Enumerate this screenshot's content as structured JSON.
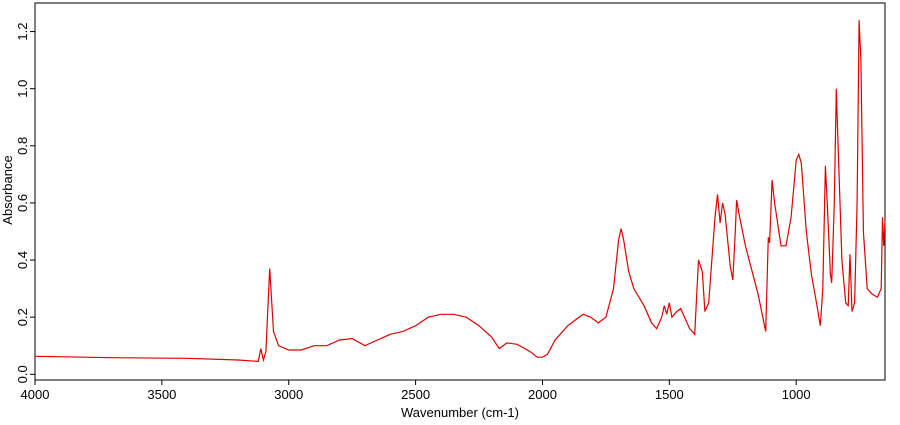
{
  "chart_data": {
    "type": "line",
    "xlabel": "Wavenumber (cm-1)",
    "ylabel": "Absorbance",
    "xlim": [
      4000,
      650
    ],
    "ylim": [
      -0.02,
      1.3
    ],
    "xticks": [
      4000,
      3500,
      3000,
      2500,
      2000,
      1500,
      1000
    ],
    "yticks": [
      {
        "value": 0,
        "label": "0.0"
      },
      0.2,
      0.4,
      0.6,
      0.8,
      {
        "value": 1,
        "label": "1.0"
      },
      1.2
    ],
    "series": [
      {
        "color": "#e00000",
        "x": [
          4000,
          3700,
          3400,
          3200,
          3120,
          3110,
          3100,
          3090,
          3075,
          3060,
          3040,
          3000,
          2950,
          2900,
          2850,
          2800,
          2750,
          2700,
          2650,
          2600,
          2550,
          2500,
          2450,
          2400,
          2350,
          2300,
          2250,
          2200,
          2170,
          2140,
          2100,
          2050,
          2020,
          2000,
          1980,
          1950,
          1900,
          1870,
          1840,
          1810,
          1780,
          1750,
          1720,
          1700,
          1690,
          1680,
          1660,
          1640,
          1600,
          1570,
          1550,
          1530,
          1520,
          1510,
          1500,
          1490,
          1470,
          1455,
          1440,
          1420,
          1400,
          1385,
          1370,
          1360,
          1345,
          1320,
          1310,
          1300,
          1290,
          1280,
          1260,
          1250,
          1240,
          1235,
          1225,
          1200,
          1150,
          1120,
          1110,
          1105,
          1095,
          1085,
          1060,
          1040,
          1020,
          1000,
          990,
          980,
          960,
          940,
          920,
          905,
          895,
          885,
          875,
          865,
          860,
          850,
          842,
          835,
          820,
          805,
          795,
          788,
          780,
          770,
          760,
          752,
          745,
          735,
          720,
          700,
          680,
          665,
          660,
          655,
          650
        ],
        "values": [
          0.063,
          0.058,
          0.056,
          0.05,
          0.045,
          0.09,
          0.05,
          0.08,
          0.37,
          0.15,
          0.1,
          0.085,
          0.085,
          0.1,
          0.1,
          0.12,
          0.125,
          0.1,
          0.12,
          0.14,
          0.15,
          0.17,
          0.2,
          0.21,
          0.21,
          0.2,
          0.17,
          0.13,
          0.09,
          0.11,
          0.105,
          0.08,
          0.06,
          0.06,
          0.07,
          0.12,
          0.17,
          0.19,
          0.21,
          0.2,
          0.18,
          0.2,
          0.3,
          0.47,
          0.51,
          0.47,
          0.36,
          0.3,
          0.24,
          0.18,
          0.16,
          0.2,
          0.24,
          0.21,
          0.25,
          0.2,
          0.22,
          0.23,
          0.2,
          0.16,
          0.14,
          0.4,
          0.36,
          0.22,
          0.25,
          0.55,
          0.63,
          0.53,
          0.6,
          0.56,
          0.38,
          0.33,
          0.5,
          0.61,
          0.56,
          0.45,
          0.28,
          0.15,
          0.48,
          0.46,
          0.68,
          0.6,
          0.45,
          0.45,
          0.55,
          0.75,
          0.77,
          0.74,
          0.5,
          0.35,
          0.25,
          0.17,
          0.3,
          0.73,
          0.55,
          0.35,
          0.32,
          0.6,
          1.0,
          0.8,
          0.4,
          0.25,
          0.24,
          0.42,
          0.22,
          0.25,
          0.6,
          1.24,
          1.1,
          0.5,
          0.3,
          0.28,
          0.27,
          0.3,
          0.55,
          0.45,
          0.54
        ]
      }
    ]
  }
}
